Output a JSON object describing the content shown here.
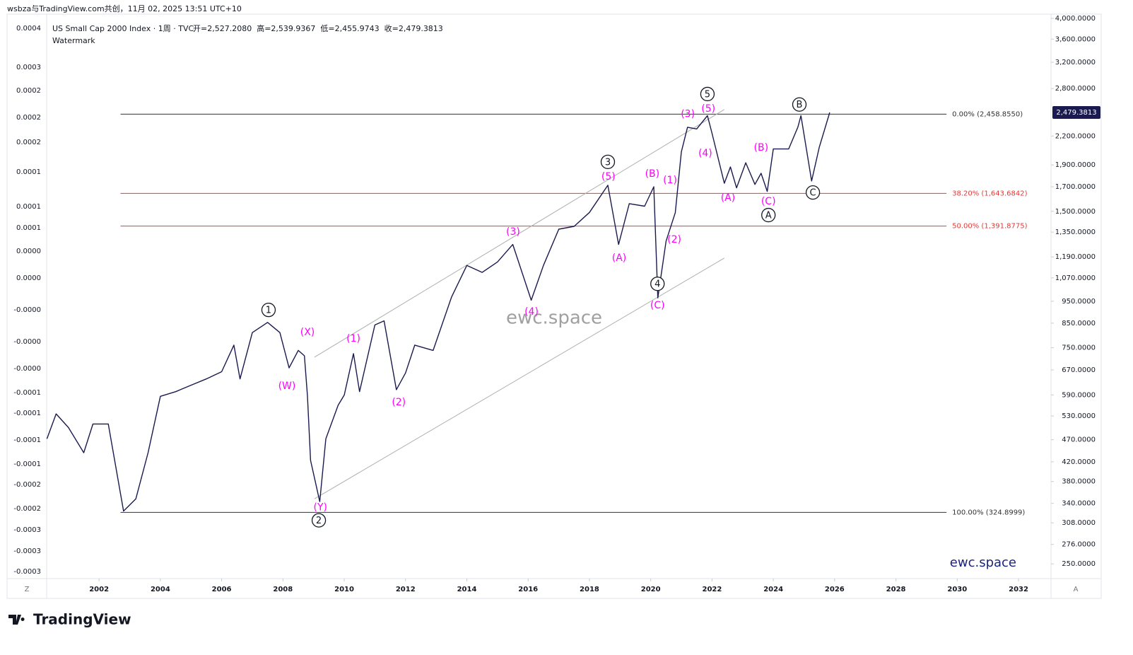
{
  "top_caption": "wsbza与TradingView.com共创，11月 02, 2025 13:51 UTC+10",
  "footer_brand": "TradingView",
  "corner_left": "Z",
  "corner_right": "A",
  "chart_data": {
    "type": "line",
    "title": "US Small Cap 2000 Index · 1周 · TVC",
    "ohlc": [
      "开=2,527.2080",
      "高=2,539.9367",
      "低=2,455.9743",
      "收=2,479.3813"
    ],
    "subtitle": "Watermark",
    "watermark": "ewc.space",
    "brand_note": "ewc.space",
    "log_scale": true,
    "xlim": [
      2000.29,
      2033.06
    ],
    "xticks": [
      2002,
      2004,
      2006,
      2008,
      2010,
      2012,
      2014,
      2016,
      2018,
      2020,
      2022,
      2024,
      2026,
      2028,
      2030,
      2032
    ],
    "ylim": [
      232,
      4087
    ],
    "yticks": [
      {
        "value": 250,
        "label": "250.0000"
      },
      {
        "value": 276,
        "label": "276.0000"
      },
      {
        "value": 308,
        "label": "308.0000"
      },
      {
        "value": 340,
        "label": "340.0000"
      },
      {
        "value": 380,
        "label": "380.0000"
      },
      {
        "value": 420,
        "label": "420.0000"
      },
      {
        "value": 470,
        "label": "470.0000"
      },
      {
        "value": 530,
        "label": "530.0000"
      },
      {
        "value": 590,
        "label": "590.0000"
      },
      {
        "value": 670,
        "label": "670.0000"
      },
      {
        "value": 750,
        "label": "750.0000"
      },
      {
        "value": 850,
        "label": "850.0000"
      },
      {
        "value": 950,
        "label": "950.0000"
      },
      {
        "value": 1070,
        "label": "1,070.0000"
      },
      {
        "value": 1190,
        "label": "1,190.0000"
      },
      {
        "value": 1350,
        "label": "1,350.0000"
      },
      {
        "value": 1500,
        "label": "1,500.0000"
      },
      {
        "value": 1700,
        "label": "1,700.0000"
      },
      {
        "value": 1900,
        "label": "1,900.0000"
      },
      {
        "value": 2200,
        "label": "2,200.0000"
      },
      {
        "value": 2800,
        "label": "2,800.0000"
      },
      {
        "value": 3200,
        "label": "3,200.0000"
      },
      {
        "value": 3600,
        "label": "3,600.0000"
      },
      {
        "value": 4000,
        "label": "4,000.0000"
      }
    ],
    "left_axis_labels": [
      "0.0004",
      "0.0003",
      "0.0002",
      "0.0002",
      "0.0002",
      "0.0001",
      "0.0001",
      "0.0001",
      "0.0000",
      "0.0000",
      "-0.0000",
      "-0.0000",
      "-0.0000",
      "-0.0001",
      "-0.0001",
      "-0.0001",
      "-0.0001",
      "-0.0002",
      "-0.0002",
      "-0.0003",
      "-0.0003",
      "-0.0003"
    ],
    "series": [
      {
        "name": "US Small Cap 2000 Index",
        "color": "#1a1a4e",
        "x": [
          2000.3,
          2000.6,
          2001.0,
          2001.5,
          2001.8,
          2002.3,
          2002.8,
          2003.2,
          2003.6,
          2004.0,
          2004.5,
          2005.0,
          2005.5,
          2006.0,
          2006.4,
          2006.6,
          2007.0,
          2007.5,
          2007.9,
          2008.2,
          2008.5,
          2008.7,
          2008.8,
          2008.9,
          2009.2,
          2009.4,
          2009.8,
          2010.0,
          2010.3,
          2010.5,
          2011.0,
          2011.3,
          2011.7,
          2012.0,
          2012.3,
          2012.9,
          2013.5,
          2014.0,
          2014.5,
          2015.0,
          2015.5,
          2016.1,
          2016.5,
          2017.0,
          2017.5,
          2018.0,
          2018.6,
          2018.95,
          2019.3,
          2019.8,
          2020.1,
          2020.23,
          2020.5,
          2020.8,
          2021.0,
          2021.2,
          2021.5,
          2021.85,
          2022.0,
          2022.4,
          2022.6,
          2022.8,
          2023.1,
          2023.4,
          2023.6,
          2023.8,
          2024.0,
          2024.5,
          2024.8,
          2024.9,
          2025.25,
          2025.5,
          2025.84
        ],
        "values": [
          472,
          536,
          500,
          440,
          509,
          509,
          327,
          348,
          440,
          586,
          600,
          620,
          640,
          664,
          760,
          640,
          810,
          853,
          810,
          677,
          740,
          720,
          587,
          423,
          343,
          472,
          560,
          590,
          728,
          600,
          842,
          860,
          606,
          660,
          760,
          740,
          970,
          1140,
          1100,
          1160,
          1268,
          955,
          1140,
          1370,
          1390,
          1492,
          1713,
          1268,
          1560,
          1540,
          1700,
          966,
          1290,
          1490,
          2030,
          2300,
          2280,
          2440,
          2230,
          1730,
          1880,
          1690,
          1920,
          1720,
          1820,
          1660,
          2060,
          2060,
          2300,
          2440,
          1750,
          2080,
          2479.3813
        ]
      }
    ],
    "last_price": {
      "value": 2479.3813,
      "label": "2,479.3813"
    },
    "fib_levels": [
      {
        "value": 2458.855,
        "label": "0.00% (2,458.8550)",
        "color": "#333333"
      },
      {
        "value": 1643.6842,
        "label": "38.20% (1,643.6842)",
        "color": "#e53935"
      },
      {
        "value": 1391.8775,
        "label": "50.00% (1,391.8775)",
        "color": "#e53935"
      },
      {
        "value": 324.8999,
        "label": "100.00% (324.8999)",
        "color": "#333333"
      }
    ],
    "fib_range": [
      2002.7,
      2029.65
    ],
    "trendlines": [
      {
        "x": [
          2009.03,
          2022.4
        ],
        "y": [
          715,
          2517
        ],
        "color": "#b0b0b0"
      },
      {
        "x": [
          2009.03,
          2022.4
        ],
        "y": [
          348,
          1183
        ],
        "color": "#b0b0b0"
      }
    ],
    "annotations": [
      {
        "text": "1",
        "x": 2007.53,
        "y": 909,
        "style": "circle"
      },
      {
        "text": "2",
        "x": 2009.17,
        "y": 312,
        "style": "circle"
      },
      {
        "text": "3",
        "x": 2018.6,
        "y": 1929,
        "style": "circle"
      },
      {
        "text": "4",
        "x": 2020.22,
        "y": 1038,
        "style": "circle"
      },
      {
        "text": "5",
        "x": 2021.85,
        "y": 2723,
        "style": "circle"
      },
      {
        "text": "A",
        "x": 2023.84,
        "y": 1472,
        "style": "circle"
      },
      {
        "text": "B",
        "x": 2024.85,
        "y": 2582,
        "style": "circle"
      },
      {
        "text": "C",
        "x": 2025.29,
        "y": 1651,
        "style": "circle"
      },
      {
        "text": "(W)",
        "x": 2008.13,
        "y": 617,
        "style": "magenta"
      },
      {
        "text": "(X)",
        "x": 2008.8,
        "y": 811,
        "style": "magenta"
      },
      {
        "text": "(Y)",
        "x": 2009.22,
        "y": 333,
        "style": "magenta"
      },
      {
        "text": "(1)",
        "x": 2010.3,
        "y": 785,
        "style": "magenta"
      },
      {
        "text": "(2)",
        "x": 2011.78,
        "y": 568,
        "style": "magenta"
      },
      {
        "text": "(3)",
        "x": 2015.51,
        "y": 1351,
        "style": "magenta"
      },
      {
        "text": "(4)",
        "x": 2016.11,
        "y": 900,
        "style": "magenta"
      },
      {
        "text": "(5)",
        "x": 2018.62,
        "y": 1789,
        "style": "magenta"
      },
      {
        "text": "(A)",
        "x": 2018.97,
        "y": 1183,
        "style": "magenta"
      },
      {
        "text": "(B)",
        "x": 2020.05,
        "y": 1815,
        "style": "magenta"
      },
      {
        "text": "(C)",
        "x": 2020.22,
        "y": 929,
        "style": "magenta"
      },
      {
        "text": "(1)",
        "x": 2020.63,
        "y": 1757,
        "style": "magenta"
      },
      {
        "text": "(2)",
        "x": 2020.77,
        "y": 1298,
        "style": "magenta"
      },
      {
        "text": "(3)",
        "x": 2021.21,
        "y": 2457,
        "style": "magenta"
      },
      {
        "text": "(5)",
        "x": 2021.88,
        "y": 2526,
        "style": "magenta"
      },
      {
        "text": "(4)",
        "x": 2021.78,
        "y": 2013,
        "style": "magenta"
      },
      {
        "text": "(A)",
        "x": 2022.52,
        "y": 1606,
        "style": "magenta"
      },
      {
        "text": "(B)",
        "x": 2023.6,
        "y": 2072,
        "style": "magenta"
      },
      {
        "text": "(C)",
        "x": 2023.84,
        "y": 1577,
        "style": "magenta"
      }
    ]
  }
}
